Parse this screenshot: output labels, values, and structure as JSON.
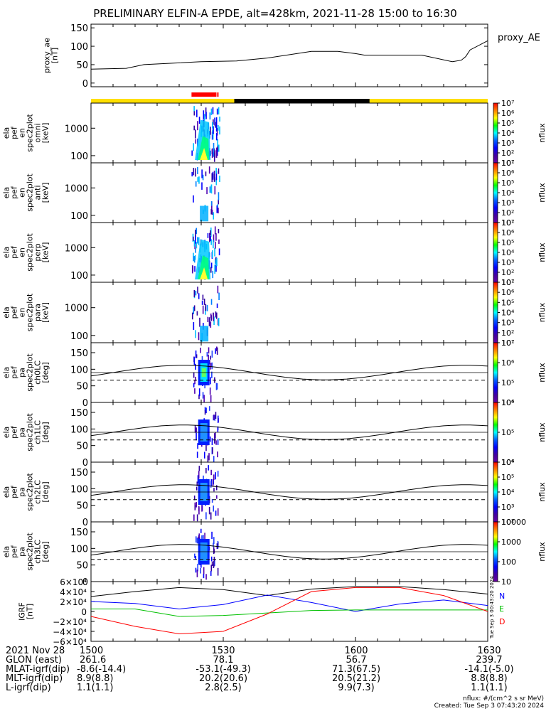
{
  "title": "PRELIMINARY ELFIN-A EPDE, alt=428km, 2021-11-28 15:00 to 16:30",
  "colors": {
    "status_yellow": "#ffdf00",
    "status_red": "#ff0000",
    "status_black": "#000000",
    "line_black": "#000000",
    "grf_blue": "#0000ff",
    "grf_green": "#00c000",
    "grf_red": "#ff0000"
  },
  "chart_data": [
    {
      "type": "line",
      "panel": "proxy_ae",
      "ylabel": "proxy_ae [nT]",
      "legend": "proxy_AE",
      "ylim": [
        -10,
        160
      ],
      "yticks": [
        "150",
        "100",
        "50",
        "0"
      ],
      "x_minutes": [
        0,
        8,
        12,
        25,
        33,
        40,
        50,
        56,
        60,
        62,
        64,
        75,
        82,
        84,
        85,
        86,
        90
      ],
      "values": [
        38,
        40,
        50,
        58,
        60,
        68,
        86,
        86,
        80,
        76,
        76,
        76,
        58,
        62,
        72,
        90,
        115
      ]
    },
    {
      "type": "status_bar",
      "panel": "orbit_status",
      "segments": [
        {
          "from_min": 0,
          "to_min": 32.5,
          "color": "yellow"
        },
        {
          "from_min": 32.5,
          "to_min": 63.2,
          "color": "black"
        },
        {
          "from_min": 63.2,
          "to_min": 90,
          "color": "yellow"
        }
      ],
      "science_zone": {
        "from_min": 22.8,
        "to_min": 29.1,
        "color": "red"
      }
    },
    {
      "type": "heatmap",
      "panel": "omni",
      "ylabel": [
        "ela",
        "pef",
        "en",
        "spec2plot",
        "omni",
        "[keV]"
      ],
      "yscale": "log",
      "yticks": [
        "1000",
        "100"
      ],
      "colorbar": {
        "label": "nflux",
        "ticks": [
          "10⁷",
          "10⁶",
          "10⁵",
          "10⁴",
          "10³",
          "10²",
          "10¹"
        ]
      }
    },
    {
      "type": "heatmap",
      "panel": "anti",
      "ylabel": [
        "ela",
        "pef",
        "en",
        "spec2plot",
        "anti",
        "[keV]"
      ],
      "yscale": "log",
      "yticks": [
        "1000",
        "100"
      ],
      "colorbar": {
        "label": "nflux",
        "ticks": [
          "10⁷",
          "10⁶",
          "10⁵",
          "10⁴",
          "10³",
          "10²",
          "10¹"
        ]
      }
    },
    {
      "type": "heatmap",
      "panel": "perp",
      "ylabel": [
        "ela",
        "pef",
        "en",
        "spec2plot",
        "perp",
        "[keV]"
      ],
      "yscale": "log",
      "yticks": [
        "1000",
        "100"
      ],
      "colorbar": {
        "label": "nflux",
        "ticks": [
          "10⁷",
          "10⁶",
          "10⁵",
          "10⁴",
          "10³",
          "10²",
          "10¹"
        ]
      }
    },
    {
      "type": "heatmap",
      "panel": "para",
      "ylabel": [
        "ela",
        "pef",
        "en",
        "spec2plot",
        "para",
        "[keV]"
      ],
      "yscale": "log",
      "yticks": [
        "1000",
        "100"
      ],
      "colorbar": {
        "label": "nflux",
        "ticks": [
          "10⁷",
          "10⁶",
          "10⁵",
          "10⁴",
          "10³",
          "10²",
          "10¹"
        ]
      }
    },
    {
      "type": "heatmap",
      "panel": "ch0LC",
      "ylabel": [
        "ela",
        "pef",
        "pa",
        "spec2plot",
        "ch0LC",
        "[deg]"
      ],
      "yticks": [
        "150",
        "100",
        "50",
        "0"
      ],
      "ylim": [
        0,
        180
      ],
      "colorbar": {
        "label": "nflux",
        "ticks": [
          "10⁷",
          "10⁶",
          "10⁵",
          "10⁴"
        ]
      }
    },
    {
      "type": "heatmap",
      "panel": "ch1LC",
      "ylabel": [
        "ela",
        "pef",
        "pa",
        "spec2plot",
        "ch1LC",
        "[deg]"
      ],
      "yticks": [
        "150",
        "100",
        "50",
        "0"
      ],
      "ylim": [
        0,
        180
      ],
      "colorbar": {
        "label": "nflux",
        "ticks": [
          "10⁶",
          "10⁵",
          "10⁴"
        ]
      }
    },
    {
      "type": "heatmap",
      "panel": "ch2LC",
      "ylabel": [
        "ela",
        "pef",
        "pa",
        "spec2plot",
        "ch2LC",
        "[deg]"
      ],
      "yticks": [
        "150",
        "100",
        "50",
        "0"
      ],
      "ylim": [
        0,
        180
      ],
      "colorbar": {
        "label": "nflux",
        "ticks": [
          "10⁶",
          "10⁵",
          "10⁴",
          "10³",
          "10²"
        ]
      }
    },
    {
      "type": "heatmap",
      "panel": "ch3LC",
      "ylabel": [
        "ela",
        "pef",
        "pa",
        "spec2plot",
        "ch3LC",
        "[deg]"
      ],
      "yticks": [
        "150",
        "100",
        "50",
        "0"
      ],
      "ylim": [
        0,
        180
      ],
      "colorbar": {
        "label": "nflux",
        "ticks": [
          "10000",
          "1000",
          "100",
          "10"
        ]
      }
    },
    {
      "type": "line",
      "panel": "igrf",
      "ylabel": [
        "IGRF",
        "[nT]"
      ],
      "ylim": [
        -60000,
        60000
      ],
      "yticks": [
        "6×10⁴",
        "4×10⁴",
        "2×10⁴",
        "0",
        "−2×10⁴",
        "−4×10⁴",
        "−6×10⁴"
      ],
      "legend": [
        "N",
        "E",
        "D"
      ],
      "x_minutes": [
        0,
        10,
        20,
        30,
        40,
        50,
        60,
        70,
        80,
        90
      ],
      "series": [
        {
          "name": "total",
          "values": [
            30000,
            40000,
            48000,
            44000,
            32000,
            45000,
            50000,
            50000,
            44000,
            35000
          ]
        },
        {
          "name": "N",
          "values": [
            20000,
            16000,
            5000,
            14000,
            33000,
            18000,
            0,
            15000,
            23000,
            12000
          ]
        },
        {
          "name": "E",
          "values": [
            5000,
            5000,
            -10000,
            -8000,
            -3000,
            2000,
            3000,
            3000,
            3000,
            3000
          ]
        },
        {
          "name": "D",
          "values": [
            -10000,
            -30000,
            -45000,
            -40000,
            -5000,
            40000,
            48000,
            48000,
            32000,
            0
          ]
        }
      ]
    }
  ],
  "footer": {
    "labels": [
      "2021 Nov 28",
      "GLON (east)",
      "MLAT-igrf(dip)",
      "MLT-igrf(dip)",
      "L-igrf(dip)"
    ],
    "columns": [
      {
        "time": "1500",
        "glon": "261.6",
        "mlat": "-8.6(-14.4)",
        "mlt": "8.9(8.8)",
        "l": "1.1(1.1)"
      },
      {
        "time": "1530",
        "glon": "78.1",
        "mlat": "-53.1(-49.3)",
        "mlt": "20.2(20.6)",
        "l": "2.8(2.5)"
      },
      {
        "time": "1600",
        "glon": "56.7",
        "mlat": "71.3(67.5)",
        "mlt": "20.5(21.2)",
        "l": "9.9(7.3)"
      },
      {
        "time": "1630",
        "glon": "239.7",
        "mlat": "-14.1(-5.0)",
        "mlt": "8.8(8.8)",
        "l": "1.1(1.1)"
      }
    ],
    "units_note": "nflux: #/(cm^2 s sr MeV)",
    "created": "Created: Tue Sep  3 07:43:20 2024",
    "side_stamp": "Tue Sep  3 00:43:20 2024"
  }
}
